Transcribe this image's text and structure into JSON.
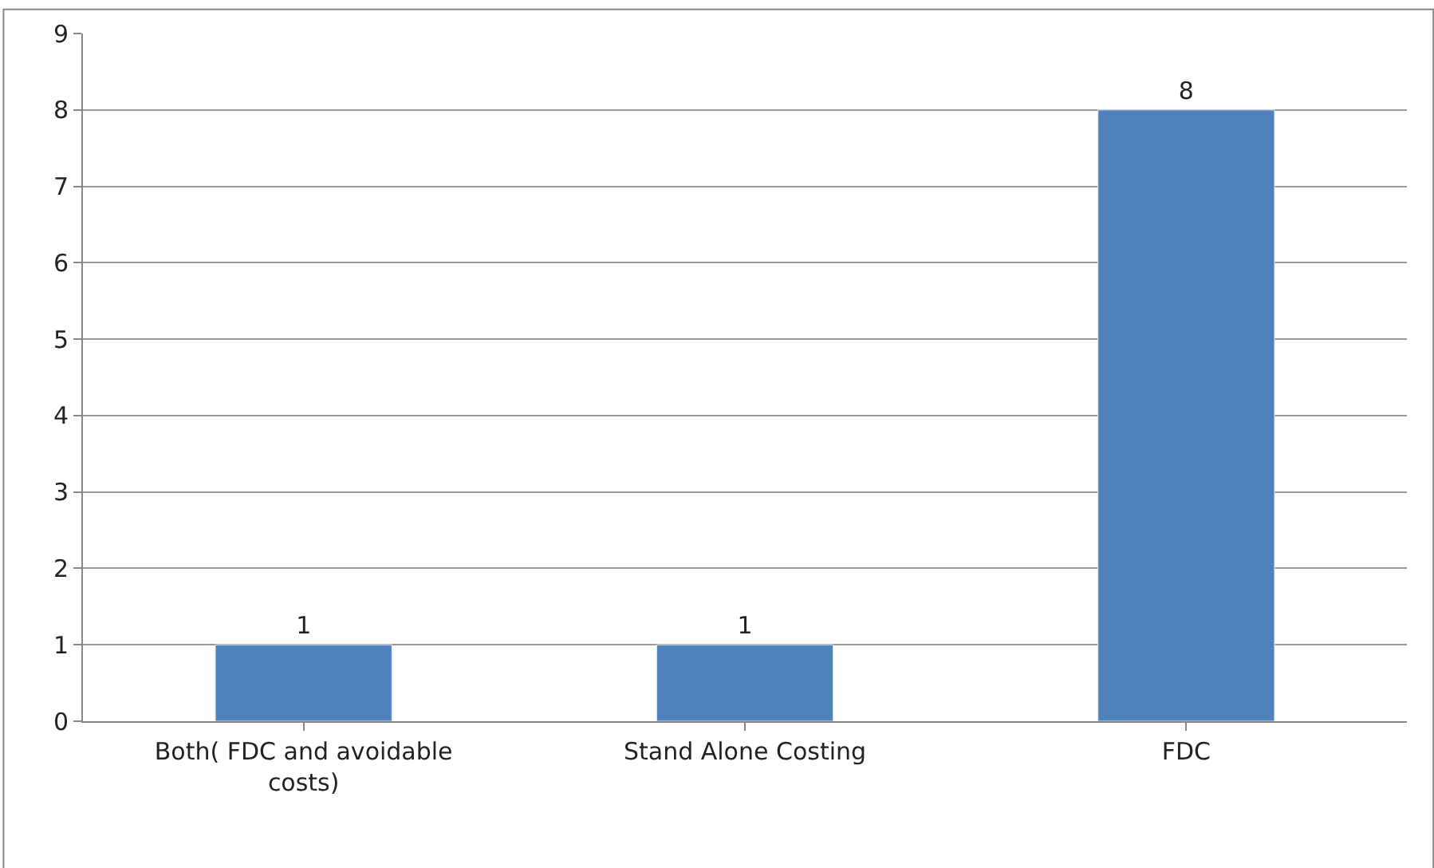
{
  "chart_data": {
    "type": "bar",
    "categories": [
      "Both( FDC and avoidable costs)",
      "Stand Alone Costing",
      "FDC"
    ],
    "values": [
      1,
      1,
      8
    ],
    "color": "#4f81bd",
    "ylim": [
      0,
      9
    ],
    "yticks": [
      0,
      1,
      2,
      3,
      4,
      5,
      6,
      7,
      8,
      9
    ],
    "grid": "y",
    "data_labels": true
  }
}
